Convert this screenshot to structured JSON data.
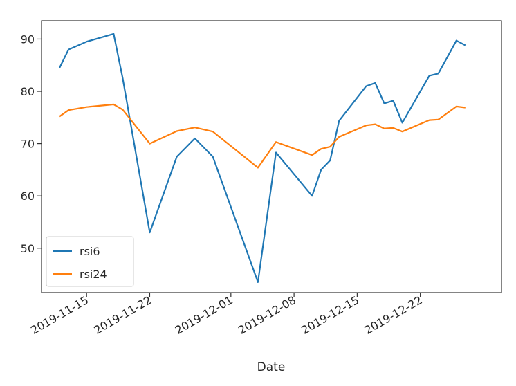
{
  "chart_data": {
    "type": "line",
    "xlabel": "Date",
    "ylabel": "",
    "xlim": [
      "2019-11-10",
      "2019-12-31"
    ],
    "ylim": [
      41.5,
      93.5
    ],
    "x_ticks": [
      "2019-11-15",
      "2019-11-22",
      "2019-12-01",
      "2019-12-08",
      "2019-12-15",
      "2019-12-22"
    ],
    "y_ticks": [
      50,
      60,
      70,
      80,
      90
    ],
    "grid": false,
    "legend": "lower-left",
    "series": [
      {
        "name": "rsi6",
        "color": "#1f77b4",
        "x": [
          "2019-11-12",
          "2019-11-13",
          "2019-11-15",
          "2019-11-18",
          "2019-11-19",
          "2019-11-22",
          "2019-11-25",
          "2019-11-27",
          "2019-11-29",
          "2019-12-04",
          "2019-12-06",
          "2019-12-10",
          "2019-12-11",
          "2019-12-12",
          "2019-12-13",
          "2019-12-16",
          "2019-12-17",
          "2019-12-18",
          "2019-12-19",
          "2019-12-20",
          "2019-12-23",
          "2019-12-24",
          "2019-12-26",
          "2019-12-27"
        ],
        "values": [
          84.5,
          88.0,
          89.5,
          91.0,
          82.5,
          53.0,
          67.5,
          71.0,
          67.5,
          43.5,
          68.3,
          60.0,
          65.0,
          66.8,
          74.4,
          81.0,
          81.6,
          77.7,
          78.2,
          74.0,
          83.0,
          83.4,
          89.7,
          88.8
        ]
      },
      {
        "name": "rsi24",
        "color": "#ff7f0e",
        "x": [
          "2019-11-12",
          "2019-11-13",
          "2019-11-15",
          "2019-11-18",
          "2019-11-19",
          "2019-11-22",
          "2019-11-25",
          "2019-11-27",
          "2019-11-29",
          "2019-12-04",
          "2019-12-06",
          "2019-12-10",
          "2019-12-11",
          "2019-12-12",
          "2019-12-13",
          "2019-12-16",
          "2019-12-17",
          "2019-12-18",
          "2019-12-19",
          "2019-12-20",
          "2019-12-23",
          "2019-12-24",
          "2019-12-26",
          "2019-12-27"
        ],
        "values": [
          75.2,
          76.4,
          77.0,
          77.5,
          76.5,
          70.0,
          72.4,
          73.1,
          72.3,
          65.4,
          70.3,
          67.8,
          69.0,
          69.4,
          71.3,
          73.5,
          73.7,
          72.9,
          73.0,
          72.3,
          74.5,
          74.6,
          77.1,
          76.9
        ]
      }
    ]
  }
}
